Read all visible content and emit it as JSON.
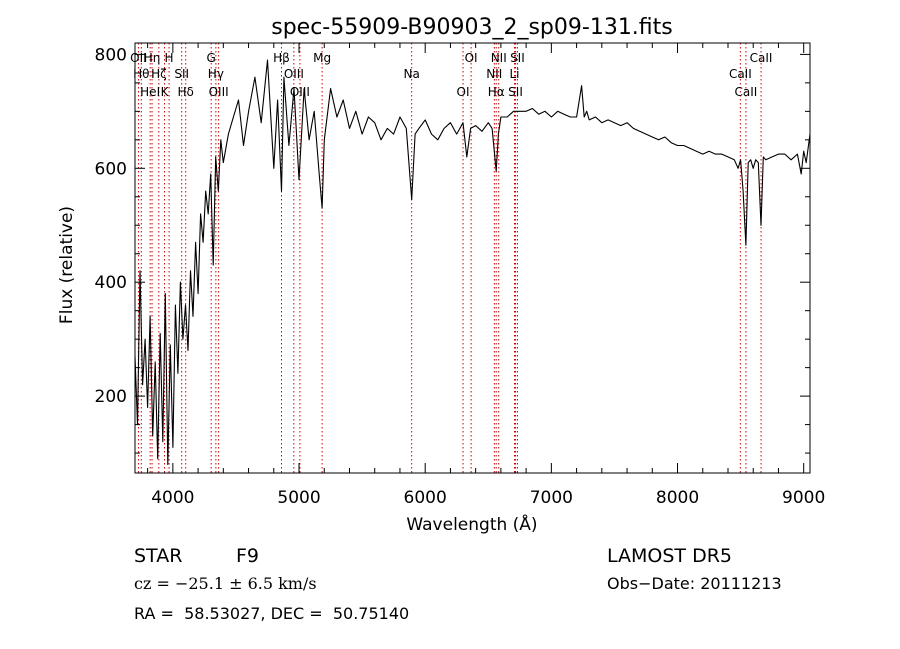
{
  "chart_data": {
    "type": "line",
    "title": "spec-55909-B90903_2_sp09-131.fits",
    "xlabel": "Wavelength (Å)",
    "ylabel": "Flux (relative)",
    "xlim": [
      3700,
      9050
    ],
    "ylim": [
      65,
      820
    ],
    "grid": false,
    "x_ticks": [
      4000,
      5000,
      6000,
      7000,
      8000,
      9000
    ],
    "x_tick_labels": [
      "4000",
      "5000",
      "6000",
      "7000",
      "8000",
      "9000"
    ],
    "y_ticks": [
      200,
      400,
      600,
      800
    ],
    "y_tick_labels": [
      "200",
      "400",
      "600",
      "800"
    ],
    "series": [
      {
        "x": [
          3700,
          3720,
          3740,
          3760,
          3780,
          3800,
          3820,
          3840,
          3860,
          3880,
          3900,
          3920,
          3940,
          3960,
          3980,
          4000,
          4020,
          4040,
          4060,
          4080,
          4100,
          4120,
          4140,
          4160,
          4180,
          4200,
          4220,
          4240,
          4260,
          4280,
          4300,
          4320,
          4340,
          4360,
          4380,
          4400,
          4440,
          4480,
          4520,
          4560,
          4600,
          4650,
          4700,
          4750,
          4800,
          4830,
          4861,
          4880,
          4920,
          4960,
          5000,
          5040,
          5080,
          5120,
          5160,
          5183,
          5200,
          5250,
          5300,
          5350,
          5400,
          5450,
          5500,
          5550,
          5600,
          5650,
          5700,
          5750,
          5800,
          5850,
          5893,
          5920,
          5950,
          6000,
          6050,
          6100,
          6150,
          6200,
          6250,
          6300,
          6330,
          6360,
          6400,
          6450,
          6500,
          6530,
          6563,
          6580,
          6600,
          6650,
          6700,
          6750,
          6800,
          6850,
          6900,
          6950,
          7000,
          7050,
          7100,
          7150,
          7200,
          7240,
          7260,
          7280,
          7300,
          7350,
          7400,
          7450,
          7500,
          7550,
          7600,
          7650,
          7700,
          7750,
          7800,
          7850,
          7900,
          7950,
          8000,
          8050,
          8100,
          8150,
          8200,
          8250,
          8300,
          8350,
          8400,
          8450,
          8480,
          8500,
          8520,
          8542,
          8560,
          8580,
          8600,
          8620,
          8640,
          8662,
          8680,
          8700,
          8750,
          8800,
          8850,
          8900,
          8950,
          8980,
          9000,
          9020,
          9050
        ],
        "values": [
          270,
          150,
          420,
          220,
          300,
          180,
          340,
          130,
          260,
          90,
          310,
          120,
          380,
          80,
          290,
          110,
          360,
          240,
          400,
          300,
          360,
          280,
          420,
          340,
          470,
          380,
          520,
          470,
          560,
          520,
          590,
          430,
          620,
          560,
          650,
          610,
          660,
          690,
          720,
          640,
          700,
          760,
          680,
          790,
          600,
          720,
          560,
          760,
          640,
          740,
          580,
          740,
          650,
          700,
          590,
          530,
          650,
          740,
          690,
          720,
          670,
          700,
          660,
          690,
          680,
          650,
          670,
          660,
          690,
          670,
          545,
          660,
          670,
          685,
          660,
          650,
          670,
          680,
          660,
          680,
          620,
          670,
          675,
          665,
          680,
          670,
          595,
          660,
          690,
          690,
          700,
          700,
          700,
          705,
          695,
          700,
          690,
          700,
          695,
          690,
          690,
          745,
          690,
          700,
          685,
          690,
          680,
          685,
          680,
          675,
          680,
          670,
          665,
          660,
          655,
          650,
          655,
          645,
          640,
          640,
          635,
          630,
          625,
          630,
          625,
          625,
          620,
          615,
          600,
          615,
          560,
          465,
          610,
          615,
          600,
          615,
          610,
          500,
          620,
          615,
          620,
          625,
          625,
          615,
          625,
          590,
          630,
          610,
          660
        ]
      }
    ],
    "line_markers": [
      {
        "wavelength": 3727,
        "label": "OII"
      },
      {
        "wavelength": 3750,
        "label": "Hθ"
      },
      {
        "wavelength": 3820,
        "label": "HeI"
      },
      {
        "wavelength": 3835,
        "label": "Hη"
      },
      {
        "wavelength": 3889,
        "label": "Hζ"
      },
      {
        "wavelength": 3934,
        "label": "K"
      },
      {
        "wavelength": 3970,
        "label": "H"
      },
      {
        "wavelength": 4070,
        "label": "SII"
      },
      {
        "wavelength": 4102,
        "label": "Hδ"
      },
      {
        "wavelength": 4304,
        "label": "G"
      },
      {
        "wavelength": 4341,
        "label": "Hγ"
      },
      {
        "wavelength": 4363,
        "label": "OIII"
      },
      {
        "wavelength": 4861,
        "label": "Hβ"
      },
      {
        "wavelength": 4959,
        "label": "OIII"
      },
      {
        "wavelength": 5007,
        "label": "OIII"
      },
      {
        "wavelength": 5183,
        "label": "Mg"
      },
      {
        "wavelength": 5893,
        "label": "Na"
      },
      {
        "wavelength": 6300,
        "label": "OI"
      },
      {
        "wavelength": 6364,
        "label": "OI"
      },
      {
        "wavelength": 6548,
        "label": "NII"
      },
      {
        "wavelength": 6563,
        "label": "Hα"
      },
      {
        "wavelength": 6583,
        "label": "NII"
      },
      {
        "wavelength": 6708,
        "label": "Li"
      },
      {
        "wavelength": 6716,
        "label": "SII"
      },
      {
        "wavelength": 6731,
        "label": "SII"
      },
      {
        "wavelength": 8498,
        "label": "CaII"
      },
      {
        "wavelength": 8542,
        "label": "CaII"
      },
      {
        "wavelength": 8662,
        "label": "CaII"
      }
    ],
    "colors": {
      "spectrum": "#000000",
      "line_markers": "#cc0000"
    }
  },
  "info": {
    "object_class": "STAR",
    "subclass": "F9",
    "survey": "LAMOST DR5",
    "cz": "cz = −25.1 ± 6.5 km/s",
    "obs_date": "Obs−Date: 20111213",
    "coords": "RA =  58.53027, DEC =  50.75140"
  }
}
